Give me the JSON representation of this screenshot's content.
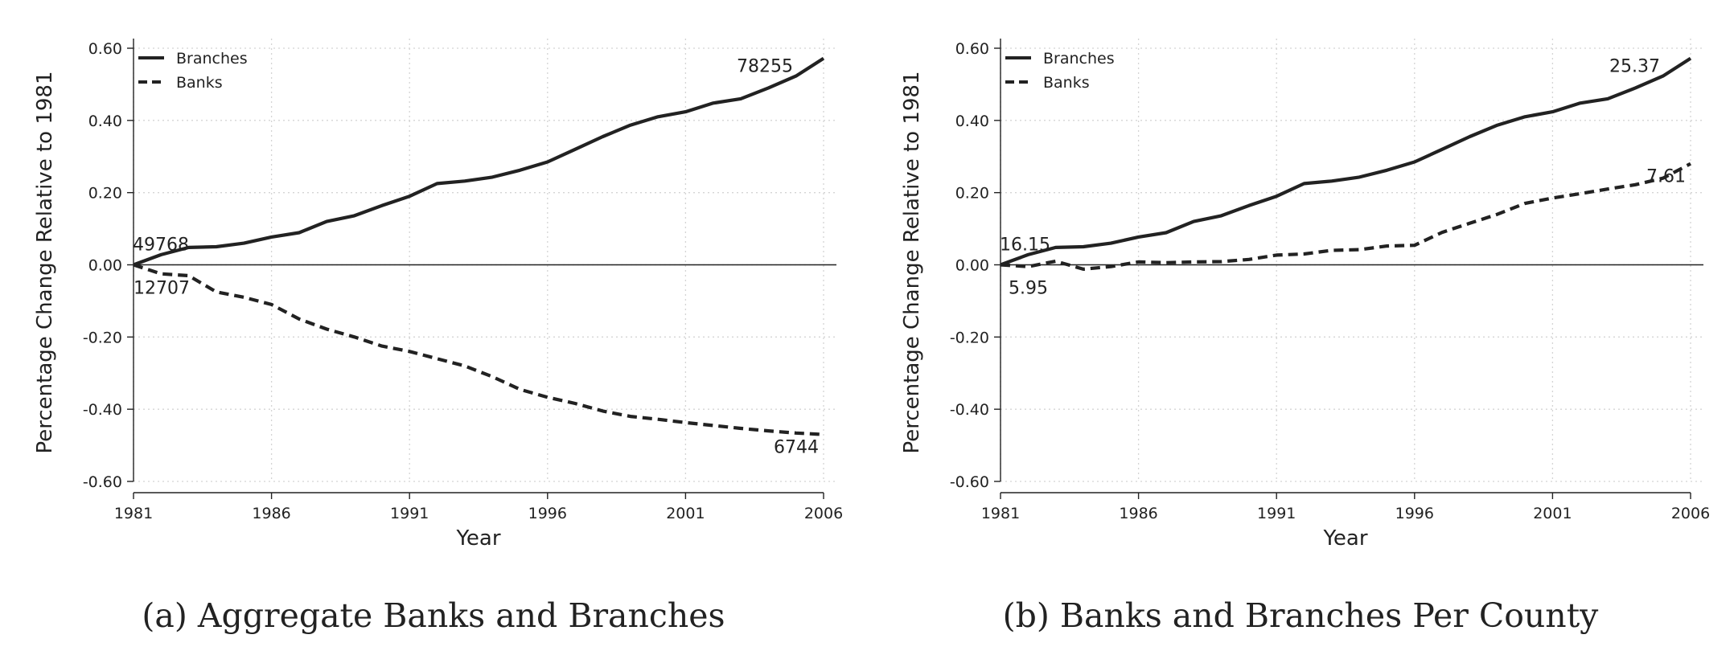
{
  "chart_data": [
    {
      "type": "line",
      "caption": "(a) Aggregate Banks and Branches",
      "xlabel": "Year",
      "ylabel": "Percentage Change Relative to 1981",
      "xlim": [
        1981,
        2006
      ],
      "ylim": [
        -0.6,
        0.6
      ],
      "xticks": [
        "1981",
        "1986",
        "1991",
        "1996",
        "2001",
        "2006"
      ],
      "yticks": [
        "0.60",
        "0.40",
        "0.20",
        "0.00",
        "-0.20",
        "-0.40",
        "-0.60"
      ],
      "grid": true,
      "legend_position": "top-left",
      "x": [
        1981,
        1982,
        1983,
        1984,
        1985,
        1986,
        1987,
        1988,
        1989,
        1990,
        1991,
        1992,
        1993,
        1994,
        1995,
        1996,
        1997,
        1998,
        1999,
        2000,
        2001,
        2002,
        2003,
        2004,
        2005,
        2006
      ],
      "series": [
        {
          "name": "Branches",
          "style": "solid",
          "values": [
            0.0,
            0.028,
            0.048,
            0.05,
            0.06,
            0.077,
            0.089,
            0.12,
            0.136,
            0.164,
            0.19,
            0.225,
            0.232,
            0.243,
            0.262,
            0.285,
            0.32,
            0.355,
            0.387,
            0.41,
            0.424,
            0.448,
            0.46,
            0.49,
            0.523,
            0.572
          ],
          "start_label": "49768",
          "end_label": "78255"
        },
        {
          "name": "Banks",
          "style": "dashed",
          "values": [
            0.0,
            -0.025,
            -0.03,
            -0.075,
            -0.09,
            -0.11,
            -0.15,
            -0.178,
            -0.2,
            -0.225,
            -0.24,
            -0.26,
            -0.28,
            -0.31,
            -0.345,
            -0.367,
            -0.384,
            -0.405,
            -0.42,
            -0.428,
            -0.437,
            -0.445,
            -0.453,
            -0.46,
            -0.466,
            -0.47
          ],
          "start_label": "12707",
          "end_label": "6744"
        }
      ]
    },
    {
      "type": "line",
      "caption": "(b) Banks and Branches Per County",
      "xlabel": "Year",
      "ylabel": "Percentage Change Relative to 1981",
      "xlim": [
        1981,
        2006
      ],
      "ylim": [
        -0.6,
        0.6
      ],
      "xticks": [
        "1981",
        "1986",
        "1991",
        "1996",
        "2001",
        "2006"
      ],
      "yticks": [
        "0.60",
        "0.40",
        "0.20",
        "0.00",
        "-0.20",
        "-0.40",
        "-0.60"
      ],
      "grid": true,
      "legend_position": "top-left",
      "x": [
        1981,
        1982,
        1983,
        1984,
        1985,
        1986,
        1987,
        1988,
        1989,
        1990,
        1991,
        1992,
        1993,
        1994,
        1995,
        1996,
        1997,
        1998,
        1999,
        2000,
        2001,
        2002,
        2003,
        2004,
        2005,
        2006
      ],
      "series": [
        {
          "name": "Branches",
          "style": "solid",
          "values": [
            0.0,
            0.028,
            0.048,
            0.05,
            0.06,
            0.077,
            0.089,
            0.12,
            0.136,
            0.164,
            0.19,
            0.225,
            0.232,
            0.243,
            0.262,
            0.285,
            0.32,
            0.355,
            0.387,
            0.41,
            0.424,
            0.448,
            0.46,
            0.49,
            0.523,
            0.572
          ],
          "start_label": "16.15",
          "end_label": "25.37"
        },
        {
          "name": "Banks",
          "style": "dashed",
          "values": [
            0.0,
            -0.005,
            0.01,
            -0.012,
            -0.005,
            0.008,
            0.006,
            0.008,
            0.009,
            0.015,
            0.027,
            0.03,
            0.04,
            0.042,
            0.052,
            0.054,
            0.09,
            0.115,
            0.14,
            0.17,
            0.185,
            0.197,
            0.21,
            0.222,
            0.24,
            0.28
          ],
          "start_label": "5.95",
          "end_label": "7.61"
        }
      ]
    }
  ]
}
